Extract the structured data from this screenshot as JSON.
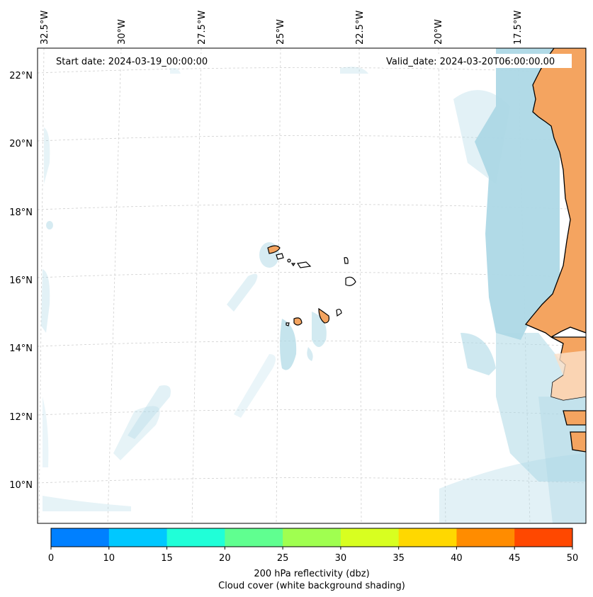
{
  "map": {
    "lon_labels": [
      "32.5°W",
      "30°W",
      "27.5°W",
      "25°W",
      "22.5°W",
      "20°W",
      "17.5°W"
    ],
    "lat_labels": [
      "22°N",
      "20°N",
      "18°N",
      "16°N",
      "14°N",
      "12°N",
      "10°N"
    ],
    "start_date": "Start date: 2024-03-19_00:00:00",
    "valid_date": "Valid_date: 2024-03-20T06:00:00.00",
    "land_color": "#f4a460",
    "cloud_color": "#add8e6"
  },
  "colorbar": {
    "ticks": [
      "0",
      "10",
      "15",
      "20",
      "25",
      "30",
      "35",
      "40",
      "45",
      "50"
    ],
    "colors": [
      "#0080ff",
      "#00c8ff",
      "#20ffd8",
      "#60ff90",
      "#a0ff50",
      "#d8ff20",
      "#ffd800",
      "#ff8c00",
      "#ff4800"
    ],
    "title_line1": "200 hPa reflectivity (dbz)",
    "title_line2": "Cloud cover (white background shading)"
  }
}
